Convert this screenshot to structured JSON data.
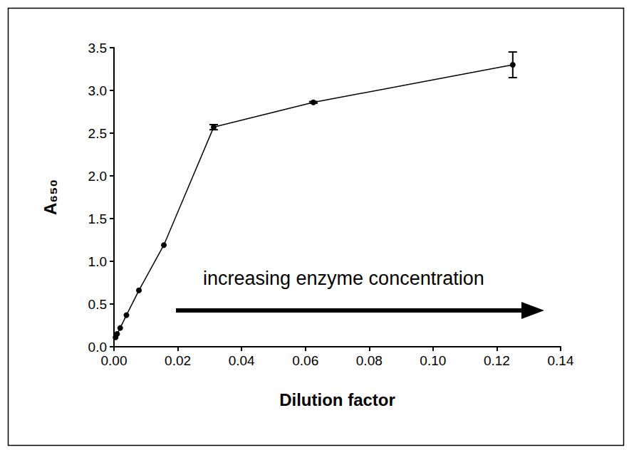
{
  "chart_data": {
    "type": "line",
    "xlabel": "Dilution factor",
    "ylabel": "A₆₅₀",
    "annotations": [
      "increasing enzyme concentration"
    ],
    "x": [
      0.000488,
      0.000977,
      0.001953,
      0.003906,
      0.007813,
      0.015625,
      0.03125,
      0.0625,
      0.125
    ],
    "values": [
      0.11,
      0.15,
      0.22,
      0.37,
      0.66,
      1.19,
      2.57,
      2.86,
      3.3
    ],
    "errors": [
      0,
      0,
      0,
      0,
      0,
      0,
      0.03,
      0.01,
      0.15
    ],
    "color": "#000000",
    "marker": "circle",
    "line_style": "solid",
    "grid": false,
    "xlim": [
      0,
      0.14
    ],
    "xticks": [
      {
        "value": 0,
        "label": "0.00"
      },
      {
        "value": 0.02,
        "label": "0.02"
      },
      {
        "value": 0.04,
        "label": "0.04"
      },
      {
        "value": 0.06,
        "label": "0.06"
      },
      {
        "value": 0.08,
        "label": "0.08"
      },
      {
        "value": 0.1,
        "label": "0.10"
      },
      {
        "value": 0.12,
        "label": "0.12"
      },
      {
        "value": 0.14,
        "label": "0.14"
      }
    ],
    "ylim": [
      0,
      3.5
    ],
    "yticks": [
      {
        "value": 0,
        "label": "0.0"
      },
      {
        "value": 0.5,
        "label": "0.5"
      },
      {
        "value": 1,
        "label": "1.0"
      },
      {
        "value": 1.5,
        "label": "1.5"
      },
      {
        "value": 2,
        "label": "2.0"
      },
      {
        "value": 2.5,
        "label": "2.5"
      },
      {
        "value": 3,
        "label": "3.0"
      },
      {
        "value": 3.5,
        "label": "3.5"
      }
    ]
  }
}
